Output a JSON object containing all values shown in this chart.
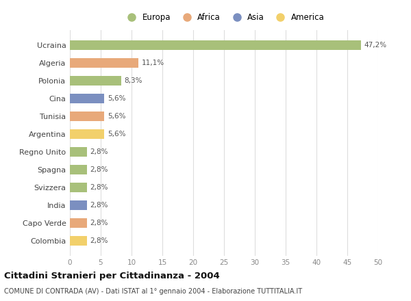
{
  "countries": [
    "Ucraina",
    "Algeria",
    "Polonia",
    "Cina",
    "Tunisia",
    "Argentina",
    "Regno Unito",
    "Spagna",
    "Svizzera",
    "India",
    "Capo Verde",
    "Colombia"
  ],
  "values": [
    47.2,
    11.1,
    8.3,
    5.6,
    5.6,
    5.6,
    2.8,
    2.8,
    2.8,
    2.8,
    2.8,
    2.8
  ],
  "labels": [
    "47,2%",
    "11,1%",
    "8,3%",
    "5,6%",
    "5,6%",
    "5,6%",
    "2,8%",
    "2,8%",
    "2,8%",
    "2,8%",
    "2,8%",
    "2,8%"
  ],
  "continents": [
    "Europa",
    "Africa",
    "Europa",
    "Asia",
    "Africa",
    "America",
    "Europa",
    "Europa",
    "Europa",
    "Asia",
    "Africa",
    "America"
  ],
  "colors": {
    "Europa": "#a8c07a",
    "Africa": "#e8a97a",
    "Asia": "#7b8fc0",
    "America": "#f2d06b"
  },
  "title": "Cittadini Stranieri per Cittadinanza - 2004",
  "subtitle": "COMUNE DI CONTRADA (AV) - Dati ISTAT al 1° gennaio 2004 - Elaborazione TUTTITALIA.IT",
  "xlim": [
    0,
    50
  ],
  "xticks": [
    0,
    5,
    10,
    15,
    20,
    25,
    30,
    35,
    40,
    45,
    50
  ],
  "background_color": "#ffffff",
  "grid_color": "#dddddd",
  "legend_order": [
    "Europa",
    "Africa",
    "Asia",
    "America"
  ]
}
